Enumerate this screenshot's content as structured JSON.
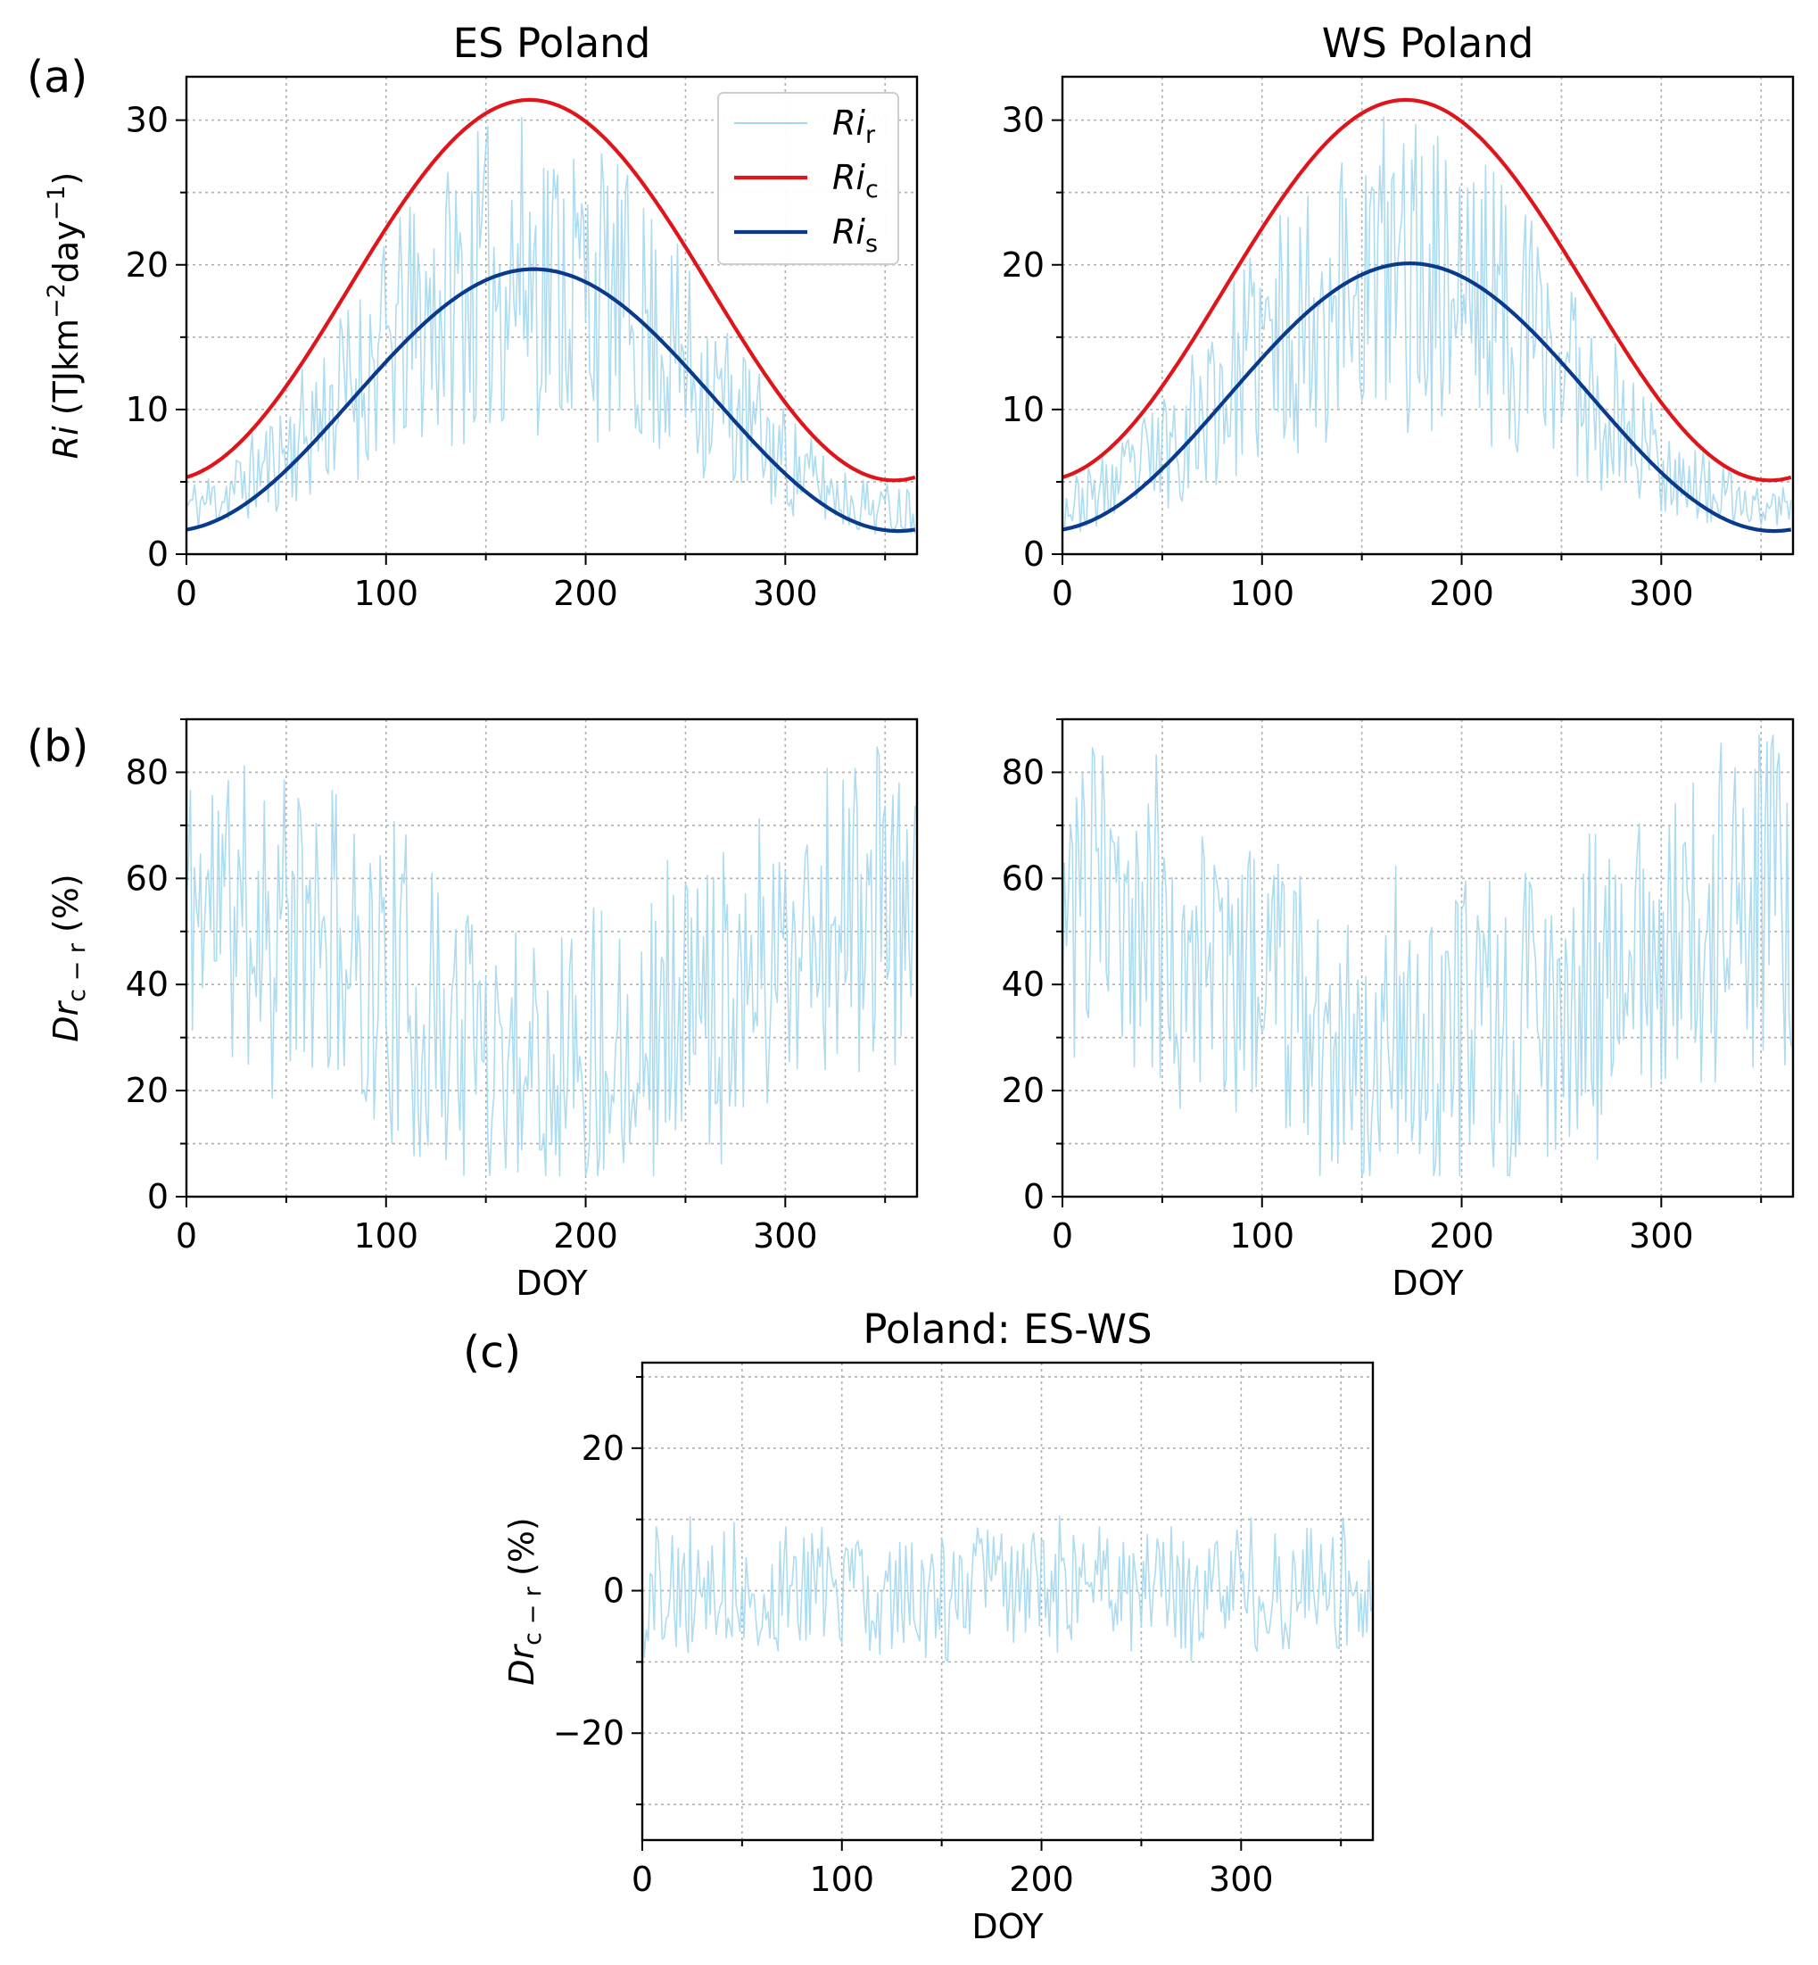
{
  "panel_letters": [
    "(a)",
    "(b)",
    "(c)"
  ],
  "colors": {
    "ri_r": "#9fd6ee",
    "ri_c": "#e0151b",
    "ri_s": "#0a3a8c",
    "grid": "#b0b0b0"
  },
  "chart_data": [
    {
      "id": "a-es",
      "panel": "(a)",
      "type": "line",
      "title": "ES Poland",
      "xlabel": "",
      "ylabel": "Ri (TJkm−2day−1)",
      "xlim": [
        0,
        366
      ],
      "ylim": [
        0,
        33
      ],
      "xticks": [
        0,
        100,
        200,
        300
      ],
      "yticks": [
        0,
        10,
        20,
        30
      ],
      "grid": true,
      "legend": "top-right",
      "series": [
        {
          "key": "ri_r",
          "name": "Rir",
          "kind": "noisy",
          "seed": 11,
          "clear": {
            "min": 5.1,
            "max": 31.4,
            "peak": 172
          },
          "ratio_mean": 0.62,
          "ratio_amp": 0.36
        },
        {
          "key": "ri_c",
          "name": "Ric",
          "kind": "seasonal",
          "min": 5.1,
          "max": 31.4,
          "peak_doy": 172
        },
        {
          "key": "ri_s",
          "name": "Ris",
          "kind": "seasonal",
          "min": 1.6,
          "max": 19.7,
          "peak_doy": 174
        }
      ]
    },
    {
      "id": "a-ws",
      "panel": "",
      "type": "line",
      "title": "WS Poland",
      "xlabel": "",
      "ylabel": "",
      "xlim": [
        0,
        366
      ],
      "ylim": [
        0,
        33
      ],
      "xticks": [
        0,
        100,
        200,
        300
      ],
      "yticks": [
        0,
        10,
        20,
        30
      ],
      "grid": true,
      "series": [
        {
          "key": "ri_r",
          "name": "Rir",
          "kind": "noisy",
          "seed": 23,
          "clear": {
            "min": 5.1,
            "max": 31.4,
            "peak": 172
          },
          "ratio_mean": 0.62,
          "ratio_amp": 0.36
        },
        {
          "key": "ri_c",
          "name": "Ric",
          "kind": "seasonal",
          "min": 5.1,
          "max": 31.4,
          "peak_doy": 172
        },
        {
          "key": "ri_s",
          "name": "Ris",
          "kind": "seasonal",
          "min": 1.6,
          "max": 20.1,
          "peak_doy": 174
        }
      ]
    },
    {
      "id": "b-es",
      "panel": "(b)",
      "type": "line",
      "title": "",
      "xlabel": "DOY",
      "ylabel": "Drc−r (%)",
      "xlim": [
        0,
        366
      ],
      "ylim": [
        0,
        90
      ],
      "xticks": [
        0,
        100,
        200,
        300
      ],
      "yticks": [
        0,
        20,
        40,
        60,
        80
      ],
      "grid": true,
      "series": [
        {
          "key": "ri_r",
          "name": "Drc−r",
          "kind": "noise",
          "seed": 11,
          "base": 42,
          "amp": 36,
          "season_amp": 14,
          "lo": 4,
          "hi": 87
        }
      ]
    },
    {
      "id": "b-ws",
      "panel": "",
      "type": "line",
      "title": "",
      "xlabel": "DOY",
      "ylabel": "",
      "xlim": [
        0,
        366
      ],
      "ylim": [
        0,
        90
      ],
      "xticks": [
        0,
        100,
        200,
        300
      ],
      "yticks": [
        0,
        20,
        40,
        60,
        80
      ],
      "grid": true,
      "series": [
        {
          "key": "ri_r",
          "name": "Drc−r",
          "kind": "noise",
          "seed": 23,
          "base": 42,
          "amp": 36,
          "season_amp": 14,
          "lo": 4,
          "hi": 87
        }
      ]
    },
    {
      "id": "c",
      "panel": "(c)",
      "type": "line",
      "title": "Poland: ES-WS",
      "xlabel": "DOY",
      "ylabel": "Drc−r (%)",
      "xlim": [
        0,
        366
      ],
      "ylim": [
        -35,
        32
      ],
      "xticks": [
        0,
        100,
        200,
        300
      ],
      "yticks": [
        -20,
        0,
        20
      ],
      "grid": true,
      "series": [
        {
          "key": "ri_r",
          "name": "ES-WS",
          "kind": "noise",
          "seed": 37,
          "base": 0,
          "amp": 11,
          "season_amp": 0,
          "lo": -32,
          "hi": 29
        }
      ]
    }
  ]
}
